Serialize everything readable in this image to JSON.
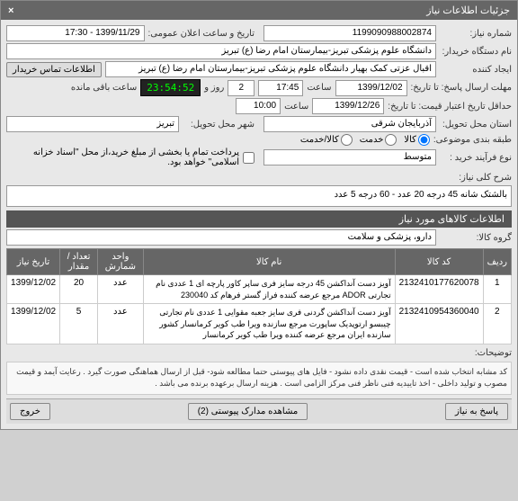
{
  "window": {
    "title": "جزئیات اطلاعات نیاز"
  },
  "fields": {
    "need_number_label": "شماره نیاز:",
    "need_number": "1199090988002874",
    "announce_date_label": "تاریخ و ساعت اعلان عمومی:",
    "announce_date": "1399/11/29 - 17:30",
    "buyer_org_label": "نام دستگاه خریدار:",
    "buyer_org": "دانشگاه علوم پزشکی تبریز-بیمارستان امام رضا (ع) تبریز",
    "creator_label": "ایجاد کننده",
    "contact_btn": "اطلاعات تماس خریدار",
    "creator_value": "اقبال عزتی کمک بهیار دانشگاه علوم پزشکی تبریز-بیمارستان امام رضا (ع) تبریز",
    "response_deadline_label": "مهلت ارسال پاسخ: تا تاریخ:",
    "response_date": "1399/12/02",
    "response_hour_label": "ساعت",
    "response_hour": "17:45",
    "remaining_label": "ساعت باقی مانده",
    "remaining_days": "2",
    "remaining_days_label": "روز و",
    "remaining_timer": "23:54:52",
    "price_validity_label": "حداقل تاریخ اعتبار قیمت: تا تاریخ:",
    "price_validity_date": "1399/12/26",
    "price_validity_hour": "10:00",
    "delivery_province_label": "استان محل تحویل:",
    "delivery_province": "آذربایجان شرقی",
    "delivery_city_label": "شهر محل تحویل:",
    "delivery_city": "تبریز",
    "category_label": "طبقه بندی موضوعی:",
    "cat_goods": "کالا",
    "cat_service": "خدمت",
    "cat_goods_service": "کالا/خدمت",
    "process_type_label": "نوع فرآیند خرید :",
    "process_type": "متوسط",
    "payment_note": "پرداخت تمام یا بخشی از مبلغ خرید،از محل \"اسناد خزانه اسلامی\" خواهد بود."
  },
  "description": {
    "header_label": "شرح کلی نیاز:",
    "text": "بالشتک شانه 45 درجه 20 عدد - 60 درجه 5 عدد"
  },
  "goods_section": {
    "header": "اطلاعات کالاهای مورد نیاز",
    "group_label": "گروه کالا:",
    "group_value": "دارو، پزشکی و سلامت"
  },
  "table": {
    "columns": [
      "ردیف",
      "کد کالا",
      "نام کالا",
      "واحد شمارش",
      "تعداد / مقدار",
      "تاریخ نیاز"
    ],
    "rows": [
      {
        "idx": "1",
        "code": "2132410177620078",
        "name": "آویز دست آنداکشن 45 درجه سایز فری ساپر کاور پارچه ای 1 عددی نام تجارتی ADOR مرجع عرضه کننده فراز گستر فرهام کد 230040",
        "unit": "عدد",
        "qty": "20",
        "date": "1399/12/02"
      },
      {
        "idx": "2",
        "code": "2132410954360040",
        "name": "آویز دست آنداکشن گردنی فری سایز جعبه مقوایی 1 عددی نام تجارتی چیبسو ارتوپدیک ساپورت مرجع سازنده ویرا طب کویر کرمانسار کشور سازنده ایران مرجع عرضه کننده ویرا طب کویر کرمانسار",
        "unit": "عدد",
        "qty": "5",
        "date": "1399/12/02"
      }
    ]
  },
  "note": {
    "label": "توضیحات:",
    "text": "کد مشابه انتخاب شده است - قیمت نقدی داده نشود - فایل های پیوستی حتما مطالعه شود- قبل از ارسال هماهنگی صورت گیرد . رعایت آیمد و قیمت مصوب و تولید داخلی -  اخذ تاییدیه فنی ناظر فنی مرکز الزامی است . هزینه ارسال برعهده برنده می باشد ."
  },
  "footer": {
    "reply_btn": "پاسخ به نیاز",
    "attachments_btn": "مشاهده مدارک پیوستی (2)",
    "exit_btn": "خروج"
  }
}
